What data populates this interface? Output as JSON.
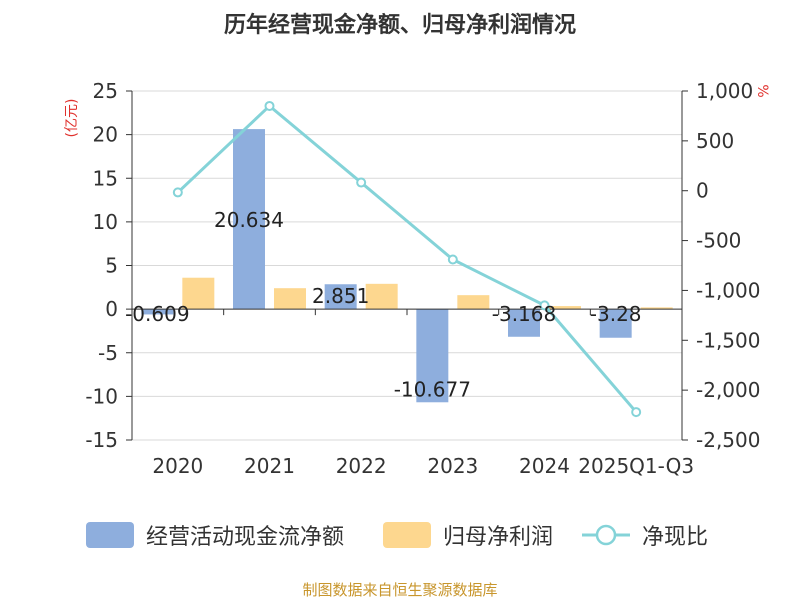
{
  "chart_data": {
    "type": "bar",
    "title": "历年经营现金净额、归母净利润情况",
    "categories": [
      "2020",
      "2021",
      "2022",
      "2023",
      "2024",
      "2025Q1-Q3"
    ],
    "series": [
      {
        "name": "经营活动现金流净额",
        "type": "bar",
        "axis": "left",
        "values": [
          -0.609,
          20.634,
          2.851,
          -10.677,
          -3.168,
          -3.28
        ],
        "labels": [
          "-0.609",
          "20.634",
          "2.851",
          "-10.677",
          "-3.168",
          "-3.28"
        ],
        "color": "#8eaedd"
      },
      {
        "name": "归母净利润",
        "type": "bar",
        "axis": "left",
        "values": [
          3.6,
          2.4,
          2.9,
          1.6,
          0.35,
          0.2
        ],
        "color": "#fdd78f"
      },
      {
        "name": "净现比",
        "type": "line",
        "axis": "right",
        "values": [
          -17,
          850,
          82,
          -690,
          -1150,
          -2220
        ],
        "color": "#84d3d8"
      }
    ],
    "left_axis": {
      "label": "(亿元)",
      "min": -15,
      "max": 25,
      "ticks": [
        25,
        20,
        15,
        10,
        5,
        0,
        -5,
        -10,
        -15
      ],
      "tick_labels": [
        "25",
        "20",
        "15",
        "10",
        "5",
        "0",
        "-5",
        "-10",
        "-15"
      ]
    },
    "right_axis": {
      "label": "%",
      "min": -2500,
      "max": 1000,
      "ticks": [
        1000,
        500,
        0,
        -500,
        -1000,
        -1500,
        -2000,
        -2500
      ],
      "tick_labels": [
        "1,000",
        "500",
        "0",
        "-500",
        "-1,000",
        "-1,500",
        "-2,000",
        "-2,500"
      ]
    },
    "grid": true,
    "legend_position": "bottom",
    "source": "制图数据来自恒生聚源数据库"
  },
  "colors": {
    "axis_label": "#e0302c",
    "source": "#c8962d",
    "grid": "#d9d9d9",
    "axis_line": "#333333"
  }
}
